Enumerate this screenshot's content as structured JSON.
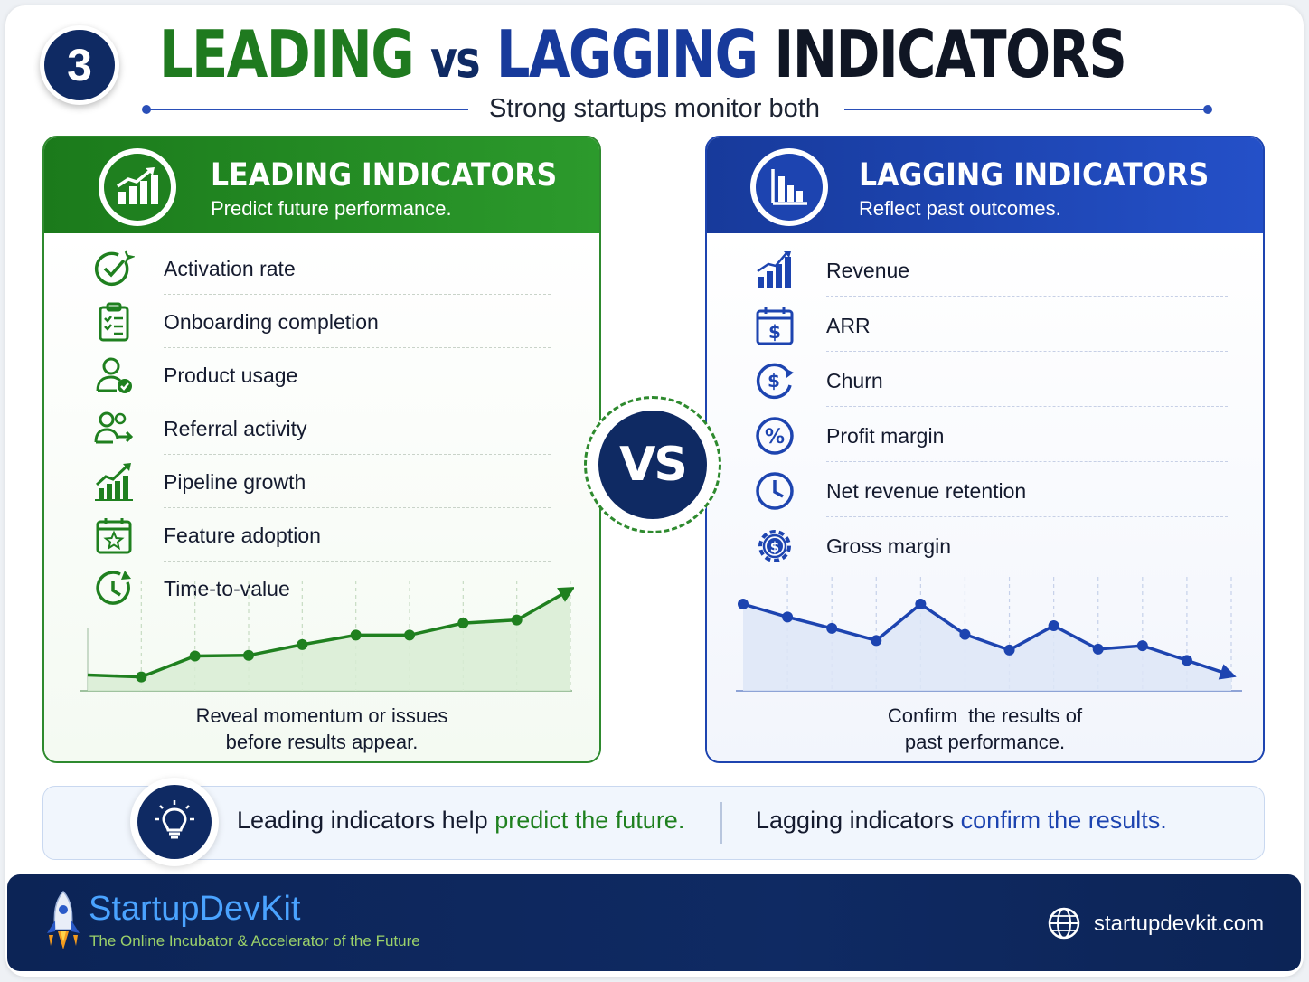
{
  "header": {
    "number": "3",
    "title_leading": "LEADING",
    "title_vs": "vs",
    "title_lagging": "LAGGING",
    "title_indicators": "INDICATORS",
    "subtitle": "Strong startups monitor both"
  },
  "leading": {
    "title": "LEADING INDICATORS",
    "subtitle": "Predict future performance.",
    "items": [
      {
        "label": "Activation rate",
        "icon": "check-circle-icon"
      },
      {
        "label": "Onboarding completion",
        "icon": "clipboard-checklist-icon"
      },
      {
        "label": "Product usage",
        "icon": "user-check-icon"
      },
      {
        "label": "Referral activity",
        "icon": "users-arrow-icon"
      },
      {
        "label": "Pipeline growth",
        "icon": "growth-chart-icon"
      },
      {
        "label": "Feature adoption",
        "icon": "calendar-star-icon"
      },
      {
        "label": "Time-to-value",
        "icon": "clock-arrow-icon"
      }
    ],
    "caption_line1": "Reveal momentum or issues",
    "caption_line2": "before results appear.",
    "trend_values": [
      0.25,
      0.22,
      0.55,
      0.56,
      0.73,
      0.88,
      0.88,
      1.07,
      1.12,
      1.6
    ],
    "color": "#1f801f"
  },
  "lagging": {
    "title": "LAGGING INDICATORS",
    "subtitle": "Reflect past outcomes.",
    "items": [
      {
        "label": "Revenue",
        "icon": "bar-chart-icon"
      },
      {
        "label": "ARR",
        "icon": "calendar-dollar-icon"
      },
      {
        "label": "Churn",
        "icon": "dollar-cycle-icon"
      },
      {
        "label": "Profit margin",
        "icon": "percent-icon"
      },
      {
        "label": "Net revenue retention",
        "icon": "clock-icon"
      },
      {
        "label": "Gross margin",
        "icon": "gear-dollar-icon"
      }
    ],
    "caption_line1": "Confirm  the results of",
    "caption_line2": "past performance.",
    "trend_values": [
      1.0,
      0.85,
      0.72,
      0.58,
      1.0,
      0.65,
      0.47,
      0.75,
      0.48,
      0.52,
      0.35,
      0.18
    ],
    "color": "#1d44b0"
  },
  "vs_label": "VS",
  "note": {
    "left_prefix": "Leading indicators help ",
    "left_highlight": "predict the future.",
    "right_prefix": "Lagging indicators ",
    "right_highlight": "confirm the results.",
    "icon": "lightbulb-icon"
  },
  "footer": {
    "brand": "StartupDevKit",
    "tagline": "The Online Incubator & Accelerator of the Future",
    "website": "startupdevkit.com",
    "logo_icon": "rocket-icon",
    "globe_icon": "globe-icon"
  }
}
